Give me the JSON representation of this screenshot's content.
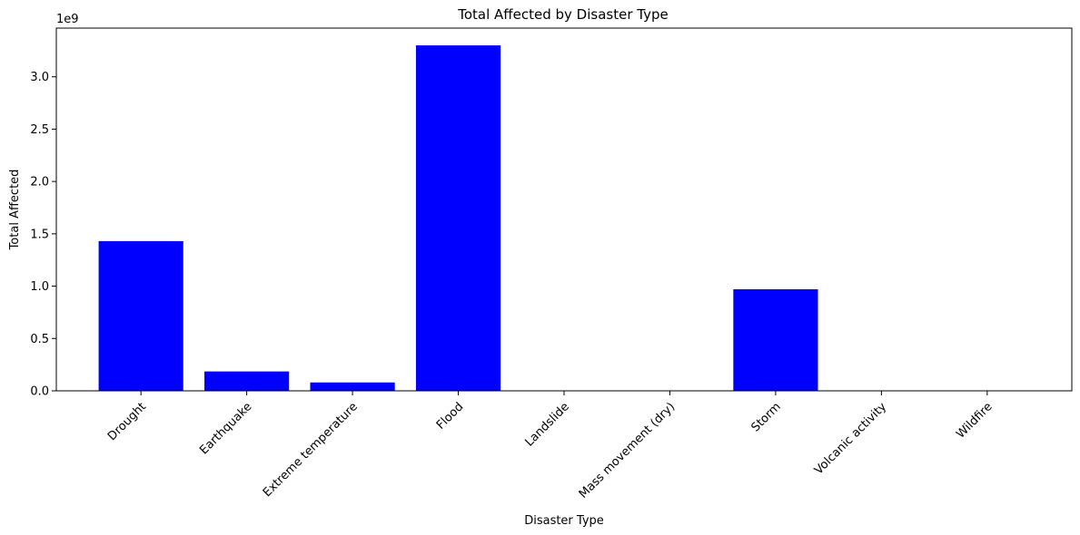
{
  "chart_data": {
    "type": "bar",
    "title": "Total Affected by Disaster Type",
    "xlabel": "Disaster Type",
    "ylabel": "Total Affected",
    "y_scale_label": "1e9",
    "y_scale": 1000000000,
    "ylim": [
      0,
      3.465
    ],
    "yticks": [
      0.0,
      0.5,
      1.0,
      1.5,
      2.0,
      2.5,
      3.0
    ],
    "ytick_labels": [
      "0.0",
      "0.5",
      "1.0",
      "1.5",
      "2.0",
      "2.5",
      "3.0"
    ],
    "categories": [
      "Drought",
      "Earthquake",
      "Extreme temperature",
      "Flood",
      "Landslide",
      "Mass movement (dry)",
      "Storm",
      "Volcanic activity",
      "Wildfire"
    ],
    "values": [
      1.43,
      0.185,
      0.08,
      3.3,
      0.003,
      0.0002,
      0.97,
      0.002,
      0.003
    ],
    "bar_color": "#0000ff",
    "grid": false,
    "legend": false
  }
}
